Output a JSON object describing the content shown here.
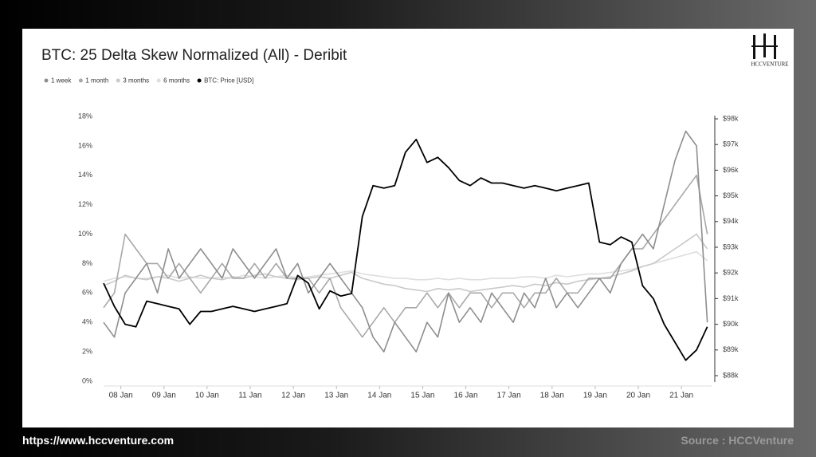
{
  "chart_data": {
    "type": "line",
    "title": "BTC: 25 Delta Skew Normalized (All) - Deribit",
    "logo": "HCCVENTURE",
    "website": "https://www.hccventure.com",
    "source": "Source : HCCVenture",
    "x": [
      7.6,
      7.85,
      8.1,
      8.35,
      8.6,
      8.85,
      9.1,
      9.35,
      9.6,
      9.85,
      10.1,
      10.35,
      10.6,
      10.85,
      11.1,
      11.35,
      11.6,
      11.85,
      12.1,
      12.35,
      12.6,
      12.85,
      13.1,
      13.35,
      13.6,
      13.85,
      14.1,
      14.35,
      14.6,
      14.85,
      15.1,
      15.35,
      15.6,
      15.85,
      16.1,
      16.35,
      16.6,
      16.85,
      17.1,
      17.35,
      17.6,
      17.85,
      18.1,
      18.35,
      18.6,
      18.85,
      19.1,
      19.35,
      19.6,
      19.85,
      20.1,
      20.35,
      20.6,
      20.85,
      21.1,
      21.35,
      21.6
    ],
    "xlim": [
      7.6,
      21.7
    ],
    "xticks": [
      {
        "value": 8,
        "label": "08 Jan"
      },
      {
        "value": 9,
        "label": "09 Jan"
      },
      {
        "value": 10,
        "label": "10 Jan"
      },
      {
        "value": 11,
        "label": "11 Jan"
      },
      {
        "value": 12,
        "label": "12 Jan"
      },
      {
        "value": 13,
        "label": "13 Jan"
      },
      {
        "value": 14,
        "label": "14 Jan"
      },
      {
        "value": 15,
        "label": "15 Jan"
      },
      {
        "value": 16,
        "label": "16 Jan"
      },
      {
        "value": 17,
        "label": "17 Jan"
      },
      {
        "value": 18,
        "label": "18 Jan"
      },
      {
        "value": 19,
        "label": "19 Jan"
      },
      {
        "value": 20,
        "label": "20 Jan"
      },
      {
        "value": 21,
        "label": "21 Jan"
      }
    ],
    "ylim": [
      0,
      18
    ],
    "yticks": [
      {
        "value": 0,
        "label": "0%"
      },
      {
        "value": 2,
        "label": "2%"
      },
      {
        "value": 4,
        "label": "4%"
      },
      {
        "value": 6,
        "label": "6%"
      },
      {
        "value": 8,
        "label": "8%"
      },
      {
        "value": 10,
        "label": "10%"
      },
      {
        "value": 12,
        "label": "12%"
      },
      {
        "value": 14,
        "label": "14%"
      },
      {
        "value": 16,
        "label": "16%"
      },
      {
        "value": 18,
        "label": "18%"
      }
    ],
    "y2lim": [
      88000,
      98000
    ],
    "y2ticks": [
      {
        "value": 88000,
        "label": "$88k"
      },
      {
        "value": 89000,
        "label": "$89k"
      },
      {
        "value": 90000,
        "label": "$90k"
      },
      {
        "value": 91000,
        "label": "$91k"
      },
      {
        "value": 92000,
        "label": "$92k"
      },
      {
        "value": 93000,
        "label": "$93k"
      },
      {
        "value": 94000,
        "label": "$94k"
      },
      {
        "value": 95000,
        "label": "$95k"
      },
      {
        "value": 96000,
        "label": "$96k"
      },
      {
        "value": 97000,
        "label": "$97k"
      },
      {
        "value": 98000,
        "label": "$98k"
      }
    ],
    "grid": false,
    "legend": "top-left",
    "series": [
      {
        "name": "1 week",
        "color": "#8e8e8e",
        "values": [
          4,
          3,
          6,
          7,
          8,
          6,
          9,
          7,
          8,
          9,
          8,
          7,
          9,
          8,
          7,
          8,
          9,
          7,
          8,
          6,
          7,
          8,
          7,
          6,
          5,
          3,
          2,
          4,
          3,
          2,
          4,
          3,
          6,
          4,
          5,
          4,
          6,
          5,
          4,
          6,
          5,
          7,
          5,
          6,
          5,
          6,
          7,
          6,
          8,
          9,
          10,
          9,
          12,
          15,
          17,
          16,
          4
        ]
      },
      {
        "name": "1 month",
        "color": "#a8a8a8",
        "values": [
          5,
          6,
          10,
          9,
          8,
          8,
          7,
          8,
          7,
          6,
          7,
          8,
          7,
          7,
          8,
          7,
          8,
          7,
          7,
          7,
          6,
          7,
          5,
          4,
          3,
          4,
          5,
          4,
          5,
          5,
          6,
          5,
          6,
          5,
          6,
          6,
          5,
          6,
          6,
          5,
          6,
          6,
          7,
          6,
          6,
          7,
          7,
          7,
          8,
          9,
          9,
          10,
          11,
          12,
          13,
          14,
          10
        ]
      },
      {
        "name": "3 months",
        "color": "#c9c9c9",
        "values": [
          6.5,
          6.8,
          7.2,
          7,
          6.9,
          7.1,
          7,
          6.8,
          7,
          7.2,
          7,
          6.9,
          7.1,
          7,
          7.2,
          7.3,
          7.1,
          7,
          6.9,
          7,
          7.1,
          7,
          7.2,
          7.4,
          7,
          6.8,
          6.6,
          6.5,
          6.3,
          6.2,
          6.1,
          6.3,
          6.2,
          6.3,
          6.1,
          6.2,
          6.3,
          6.4,
          6.5,
          6.4,
          6.6,
          6.5,
          6.7,
          6.6,
          6.8,
          6.9,
          7,
          7.1,
          7.3,
          7.5,
          7.8,
          8,
          8.5,
          9,
          9.5,
          10,
          9
        ]
      },
      {
        "name": "6 months",
        "color": "#dedede",
        "values": [
          6.8,
          7,
          7.1,
          7,
          7,
          7.1,
          7.2,
          7,
          7.1,
          7,
          7,
          7.1,
          7,
          7.2,
          7.1,
          7,
          7.1,
          7.2,
          7,
          7.1,
          7.2,
          7.3,
          7.4,
          7.5,
          7.3,
          7.2,
          7.1,
          7,
          7,
          6.9,
          6.9,
          7,
          6.9,
          7,
          6.9,
          6.9,
          7,
          7,
          7,
          7.1,
          7.1,
          7,
          7.2,
          7.1,
          7.2,
          7.3,
          7.3,
          7.4,
          7.5,
          7.6,
          7.8,
          8,
          8.2,
          8.4,
          8.6,
          8.8,
          8.2
        ]
      },
      {
        "name": "BTC: Price [USD]",
        "color": "#000000",
        "axis": "y2",
        "values": [
          91600,
          90700,
          90000,
          89900,
          90900,
          90800,
          90700,
          90600,
          90000,
          90500,
          90500,
          90600,
          90700,
          90600,
          90500,
          90600,
          90700,
          90800,
          91900,
          91600,
          90600,
          91300,
          91100,
          91200,
          94200,
          95400,
          95300,
          95400,
          96700,
          97200,
          96300,
          96500,
          96100,
          95600,
          95400,
          95700,
          95500,
          95500,
          95400,
          95300,
          95400,
          95300,
          95200,
          95300,
          95400,
          95500,
          93200,
          93100,
          93400,
          93200,
          91500,
          91000,
          90000,
          89300,
          88600,
          89000,
          89900
        ]
      }
    ]
  }
}
